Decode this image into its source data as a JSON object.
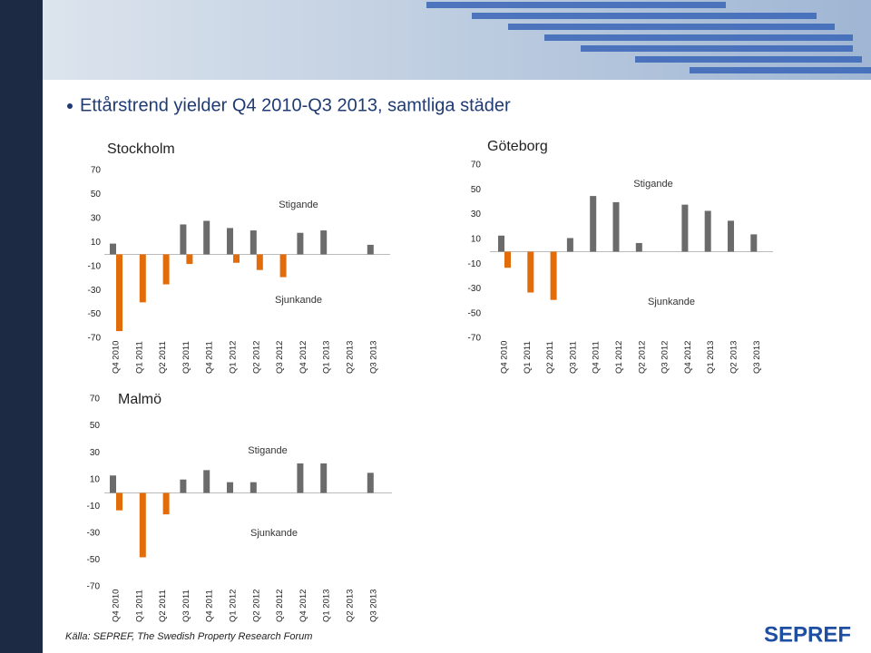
{
  "heading": "Ettårstrend yielder Q4 2010-Q3 2013, samtliga städer",
  "source": "Källa: SEPREF, The Swedish Property Research Forum",
  "logo": "SEPREF",
  "chart_data": [
    {
      "type": "bar",
      "title": "Stockholm",
      "categories": [
        "Q4 2010",
        "Q1 2011",
        "Q2 2011",
        "Q3 2011",
        "Q4 2011",
        "Q1 2012",
        "Q2 2012",
        "Q3 2012",
        "Q4 2012",
        "Q1 2013",
        "Q2 2013",
        "Q3 2013"
      ],
      "series": [
        {
          "name": "Stigande",
          "color": "#6b6b6b",
          "values": [
            9,
            null,
            null,
            25,
            28,
            22,
            20,
            null,
            18,
            20,
            null,
            8
          ]
        },
        {
          "name": "Sjunkande",
          "color": "#e36c0a",
          "values": [
            -64,
            -40,
            -25,
            -8,
            null,
            -7,
            -13,
            -19,
            null,
            null,
            null,
            null
          ]
        }
      ],
      "ylim": [
        -70,
        70
      ],
      "yticks": [
        70,
        50,
        30,
        10,
        -10,
        -30,
        -50,
        -70
      ]
    },
    {
      "type": "bar",
      "title": "Göteborg",
      "categories": [
        "Q4 2010",
        "Q1 2011",
        "Q2 2011",
        "Q3 2011",
        "Q4 2011",
        "Q1 2012",
        "Q2 2012",
        "Q3 2012",
        "Q4 2012",
        "Q1 2013",
        "Q2 2013",
        "Q3 2013"
      ],
      "series": [
        {
          "name": "Stigande",
          "color": "#6b6b6b",
          "values": [
            13,
            null,
            null,
            11,
            45,
            40,
            7,
            null,
            38,
            33,
            25,
            14
          ]
        },
        {
          "name": "Sjunkande",
          "color": "#e36c0a",
          "values": [
            -13,
            -33,
            -39,
            null,
            null,
            null,
            null,
            null,
            null,
            null,
            null,
            null
          ]
        }
      ],
      "ylim": [
        -70,
        70
      ],
      "yticks": [
        70,
        50,
        30,
        10,
        -10,
        -30,
        -50,
        -70
      ]
    },
    {
      "type": "bar",
      "title": "Malmö",
      "categories": [
        "Q4 2010",
        "Q1 2011",
        "Q2 2011",
        "Q3 2011",
        "Q4 2011",
        "Q1 2012",
        "Q2 2012",
        "Q3 2012",
        "Q4 2012",
        "Q1 2013",
        "Q2 2013",
        "Q3 2013"
      ],
      "series": [
        {
          "name": "Stigande",
          "color": "#6b6b6b",
          "values": [
            13,
            null,
            null,
            10,
            17,
            8,
            8,
            null,
            22,
            22,
            null,
            15
          ]
        },
        {
          "name": "Sjunkande",
          "color": "#e36c0a",
          "values": [
            -13,
            -48,
            -16,
            null,
            null,
            null,
            null,
            null,
            null,
            null,
            null,
            null
          ]
        }
      ],
      "ylim": [
        -70,
        70
      ],
      "yticks": [
        70,
        50,
        30,
        10,
        -10,
        -30,
        -50,
        -70
      ]
    }
  ]
}
